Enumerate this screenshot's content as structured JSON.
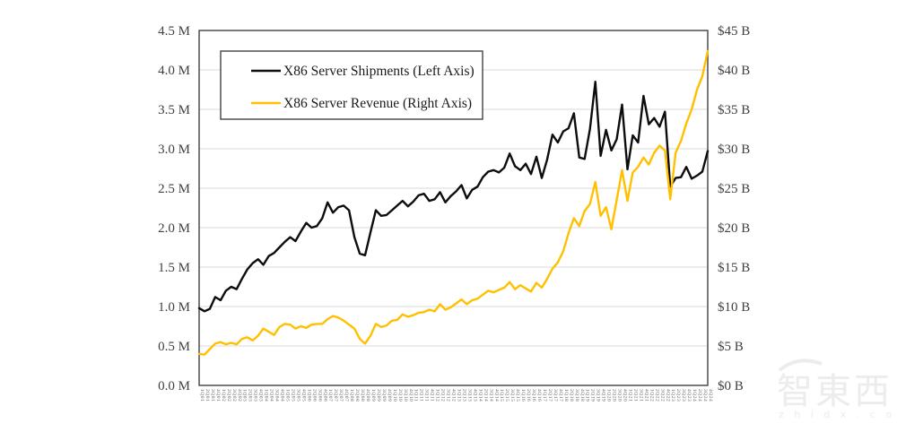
{
  "chart_data": {
    "type": "line",
    "title": "",
    "grid": true,
    "legend_position": "top-left-inside",
    "x_labels": [
      "1Q01",
      "2Q01",
      "3Q01",
      "4Q01",
      "1Q02",
      "2Q02",
      "3Q02",
      "4Q02",
      "1Q03",
      "2Q03",
      "3Q03",
      "4Q03",
      "1Q04",
      "2Q04",
      "3Q04",
      "4Q04",
      "1Q05",
      "2Q05",
      "3Q05",
      "4Q05",
      "1Q06",
      "2Q06",
      "3Q06",
      "4Q06",
      "1Q07",
      "2Q07",
      "3Q07",
      "4Q07",
      "1Q08",
      "2Q08",
      "3Q08",
      "4Q08",
      "1Q09",
      "2Q09",
      "3Q09",
      "4Q09",
      "1Q10",
      "2Q10",
      "3Q10",
      "4Q10",
      "1Q11",
      "2Q11",
      "3Q11",
      "4Q11",
      "1Q12",
      "2Q12",
      "3Q12",
      "4Q12",
      "1Q13",
      "2Q13",
      "3Q13",
      "4Q13",
      "1Q14",
      "2Q14",
      "3Q14",
      "4Q14",
      "1Q15",
      "2Q15",
      "3Q15",
      "4Q15",
      "1Q16",
      "2Q16",
      "3Q16",
      "4Q16",
      "1Q17",
      "2Q17",
      "3Q17",
      "4Q17",
      "1Q18",
      "2Q18",
      "3Q18",
      "4Q18",
      "1Q19",
      "2Q19",
      "3Q19",
      "4Q19",
      "1Q20",
      "2Q20",
      "3Q20",
      "4Q20",
      "1Q21",
      "2Q21",
      "3Q21",
      "4Q21",
      "1Q22",
      "2Q22",
      "3Q22",
      "4Q22",
      "1Q23",
      "2Q23",
      "3Q23",
      "4Q23",
      "1Q24",
      "2Q24",
      "3Q24",
      "4Q24"
    ],
    "series": [
      {
        "name": "X86 Server Shipments (Left Axis)",
        "axis": "left",
        "color": "#0d0d0d",
        "unit": "millions of units",
        "values": [
          0.98,
          0.94,
          0.97,
          1.12,
          1.08,
          1.2,
          1.25,
          1.22,
          1.35,
          1.47,
          1.55,
          1.6,
          1.53,
          1.64,
          1.68,
          1.75,
          1.82,
          1.88,
          1.83,
          1.95,
          2.06,
          2.0,
          2.02,
          2.12,
          2.32,
          2.19,
          2.26,
          2.28,
          2.22,
          1.88,
          1.67,
          1.65,
          1.94,
          2.22,
          2.15,
          2.16,
          2.22,
          2.28,
          2.34,
          2.27,
          2.33,
          2.41,
          2.43,
          2.34,
          2.36,
          2.45,
          2.32,
          2.4,
          2.46,
          2.54,
          2.37,
          2.48,
          2.52,
          2.64,
          2.71,
          2.73,
          2.7,
          2.76,
          2.94,
          2.78,
          2.73,
          2.81,
          2.68,
          2.9,
          2.63,
          2.86,
          3.18,
          3.08,
          3.22,
          3.26,
          3.45,
          2.89,
          2.87,
          3.25,
          3.85,
          2.91,
          3.24,
          2.98,
          3.12,
          3.56,
          2.74,
          3.17,
          3.08,
          3.67,
          3.31,
          3.39,
          3.28,
          3.47,
          2.52,
          2.63,
          2.64,
          2.77,
          2.62,
          2.66,
          2.71,
          2.97
        ]
      },
      {
        "name": "X86 Server Revenue (Right Axis)",
        "axis": "right",
        "color": "#FFC000",
        "unit": "billions of dollars",
        "values": [
          4.0,
          3.9,
          4.6,
          5.3,
          5.5,
          5.2,
          5.4,
          5.2,
          5.9,
          6.1,
          5.7,
          6.3,
          7.2,
          6.8,
          6.4,
          7.4,
          7.8,
          7.7,
          7.2,
          7.5,
          7.3,
          7.7,
          7.8,
          7.8,
          8.4,
          8.8,
          8.6,
          8.2,
          7.7,
          7.2,
          5.9,
          5.3,
          6.3,
          7.8,
          7.4,
          7.6,
          8.2,
          8.3,
          9.0,
          8.7,
          8.9,
          9.2,
          9.3,
          9.6,
          9.4,
          10.3,
          9.6,
          9.9,
          10.4,
          10.9,
          10.3,
          10.8,
          11.0,
          11.5,
          12.0,
          11.8,
          12.1,
          12.4,
          13.1,
          12.2,
          12.7,
          12.3,
          11.9,
          13.0,
          12.4,
          13.5,
          14.8,
          15.6,
          17.0,
          19.3,
          21.2,
          20.2,
          22.1,
          23.0,
          25.8,
          21.5,
          22.6,
          19.8,
          23.5,
          27.3,
          23.4,
          27.0,
          27.7,
          28.9,
          28.0,
          29.5,
          30.4,
          29.8,
          23.6,
          29.5,
          31.0,
          33.2,
          35.0,
          37.5,
          39.2,
          42.4
        ]
      }
    ],
    "left_axis": {
      "min": 0,
      "max": 4.5,
      "step": 0.5,
      "ticks": [
        "0.0 M",
        "0.5 M",
        "1.0 M",
        "1.5 M",
        "2.0 M",
        "2.5 M",
        "3.0 M",
        "3.5 M",
        "4.0 M",
        "4.5 M"
      ]
    },
    "right_axis": {
      "min": 0,
      "max": 45,
      "step": 5,
      "ticks": [
        "$0 B",
        "$5 B",
        "$10 B",
        "$15 B",
        "$20 B",
        "$25 B",
        "$30 B",
        "$35 B",
        "$40 B",
        "$45 B"
      ]
    }
  },
  "colors": {
    "gridline": "#d9d9d9",
    "plot_border": "#404040",
    "tick_text": "#404040",
    "watermark": "#ececec"
  },
  "watermark": {
    "brand_text": "智東西",
    "url_text": "z h i d x . c o m"
  }
}
